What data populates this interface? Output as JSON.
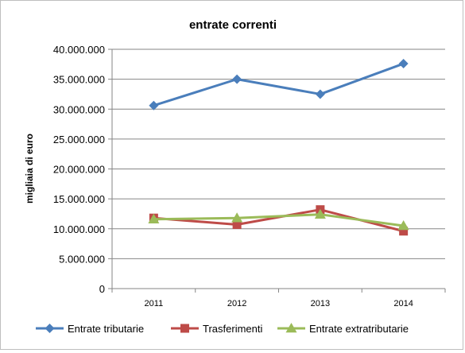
{
  "chart_data": {
    "type": "line",
    "title": "entrate correnti",
    "xlabel": "",
    "ylabel": "migliaia di euro",
    "categories": [
      "2011",
      "2012",
      "2013",
      "2014"
    ],
    "ylim": [
      0,
      40000000
    ],
    "yticks": [
      0,
      5000000,
      10000000,
      15000000,
      20000000,
      25000000,
      30000000,
      35000000,
      40000000
    ],
    "ytick_labels": [
      "0",
      "5.000.000",
      "10.000.000",
      "15.000.000",
      "20.000.000",
      "25.000.000",
      "30.000.000",
      "35.000.000",
      "40.000.000"
    ],
    "grid": true,
    "legend_position": "bottom",
    "series": [
      {
        "name": "Entrate tributarie",
        "color": "#4a7ebb",
        "marker": "diamond",
        "values": [
          30600000,
          35000000,
          32500000,
          37600000
        ]
      },
      {
        "name": "Trasferimenti",
        "color": "#be4b48",
        "marker": "square",
        "values": [
          11800000,
          10700000,
          13200000,
          9600000
        ]
      },
      {
        "name": "Entrate extratributarie",
        "color": "#9bbb59",
        "marker": "triangle",
        "values": [
          11600000,
          11800000,
          12400000,
          10500000
        ]
      }
    ]
  }
}
